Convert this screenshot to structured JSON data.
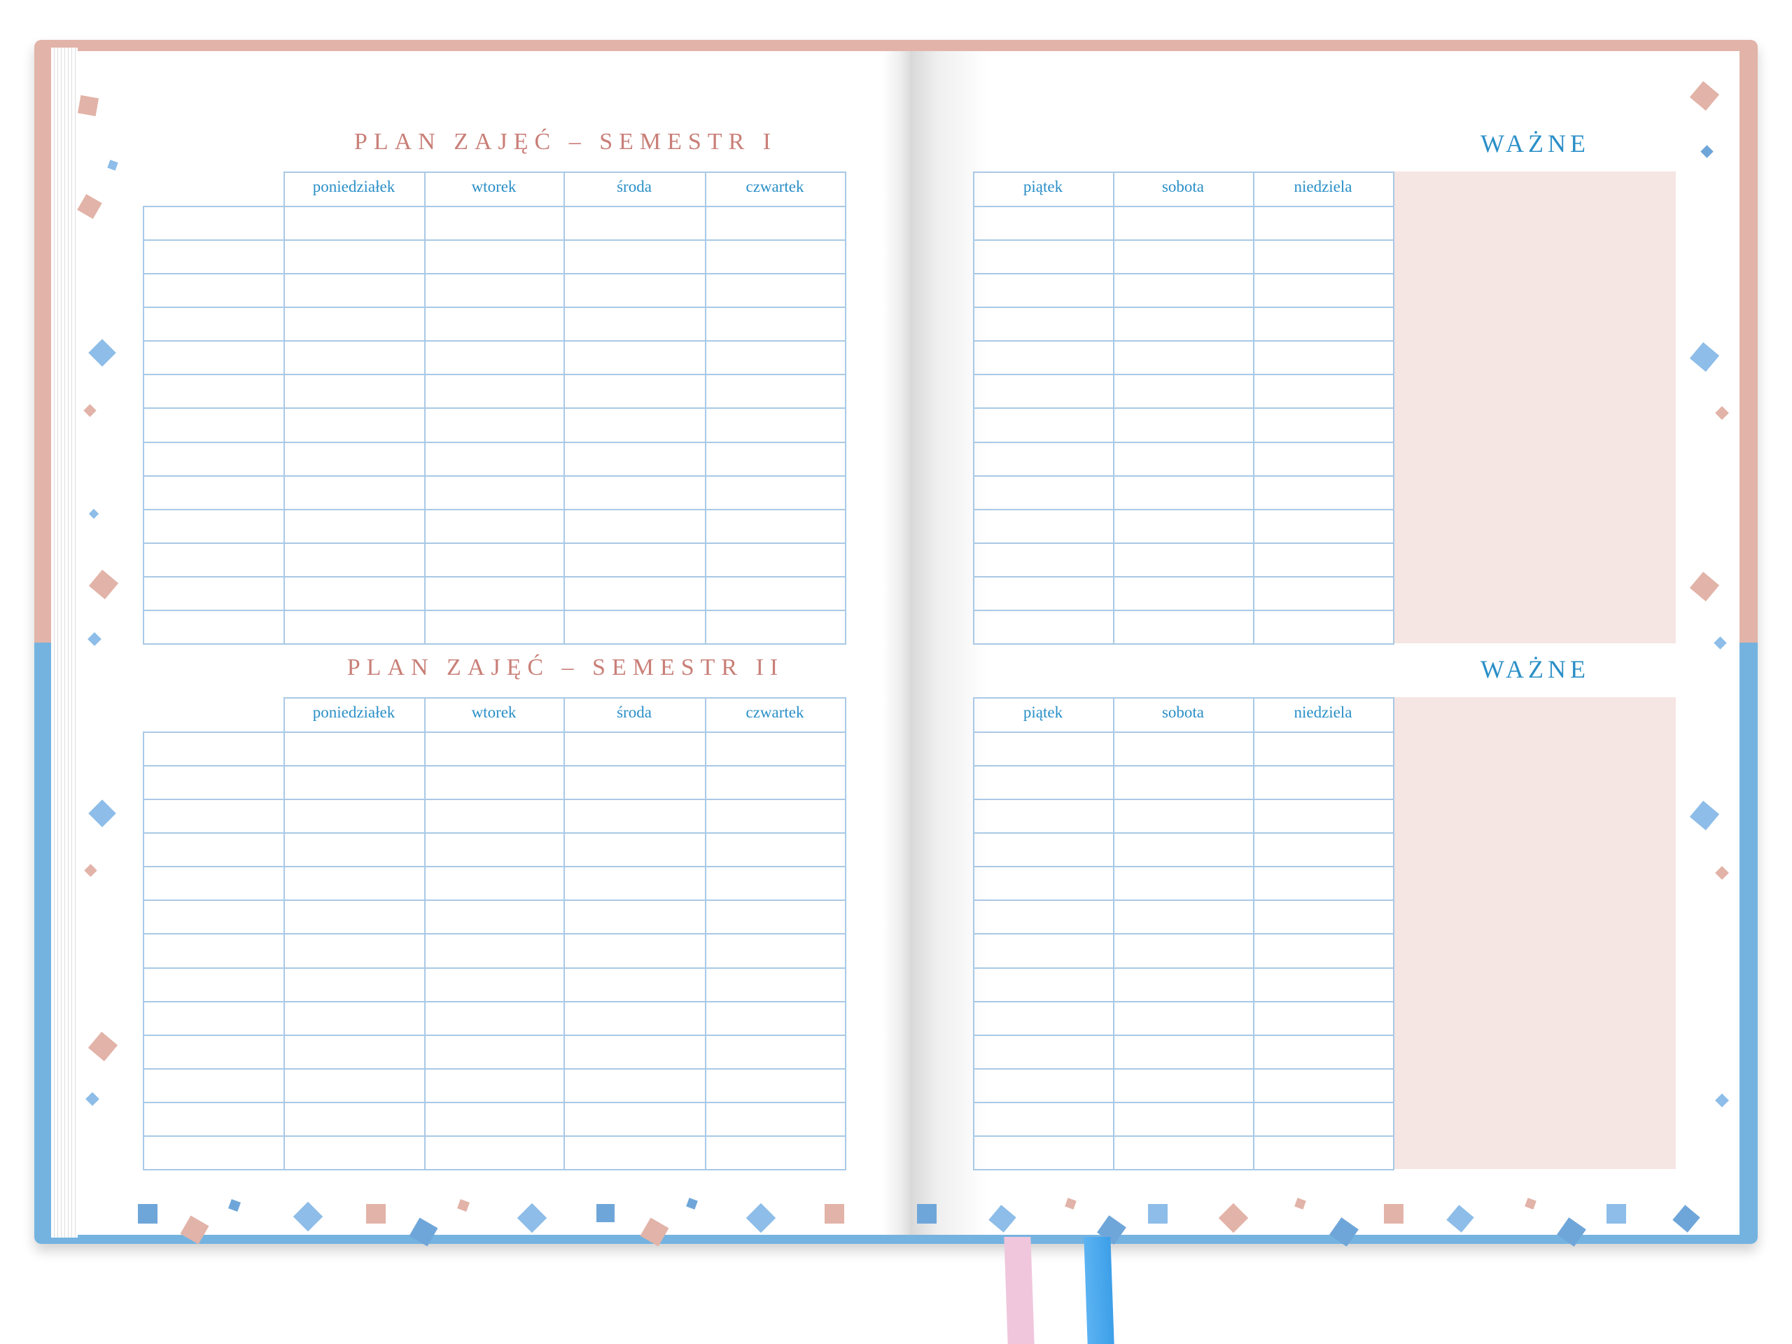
{
  "left_page": {
    "semester_1": {
      "title": "PLAN ZAJĘĆ – SEMESTR I",
      "days": [
        "poniedziałek",
        "wtorek",
        "środa",
        "czwartek"
      ]
    },
    "semester_2": {
      "title": "PLAN ZAJĘĆ – SEMESTR II",
      "days": [
        "poniedziałek",
        "wtorek",
        "środa",
        "czwartek"
      ]
    }
  },
  "right_page": {
    "semester_1": {
      "title": "WAŻNE",
      "days": [
        "piątek",
        "sobota",
        "niedziela"
      ]
    },
    "semester_2": {
      "title": "WAŻNE",
      "days": [
        "piątek",
        "sobota",
        "niedziela"
      ]
    }
  },
  "colors": {
    "cover_top": "#e2b3a8",
    "cover_bottom": "#74b3e0",
    "title": "#c97f78",
    "header_text": "#2a8fc7",
    "grid": "#a9c9e6",
    "notes_bg": "#f5e5e3",
    "ribbon_pink": "#f0c6dc",
    "ribbon_blue": "#4aa8ee"
  }
}
